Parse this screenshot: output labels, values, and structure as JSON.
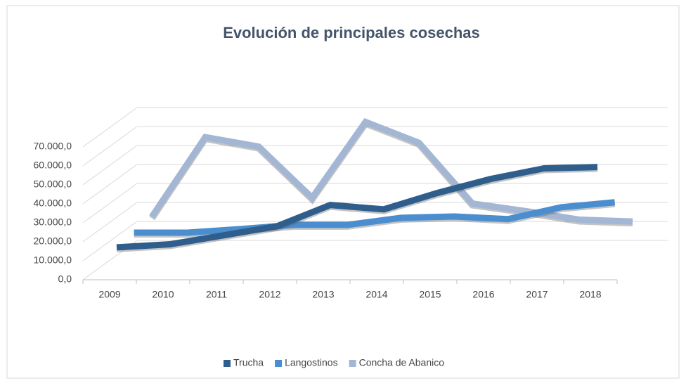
{
  "chart_data": {
    "type": "line",
    "title": "Evolución de principales cosechas",
    "categories": [
      "2009",
      "2010",
      "2011",
      "2012",
      "2013",
      "2014",
      "2015",
      "2016",
      "2017",
      "2018"
    ],
    "series": [
      {
        "name": "Trucha",
        "color": "#2f5e8c",
        "values": [
          14400,
          16000,
          20700,
          25500,
          36700,
          34400,
          43000,
          50400,
          56000,
          56700
        ]
      },
      {
        "name": "Langostinos",
        "color": "#4a8ed0",
        "values": [
          15500,
          15500,
          17400,
          19600,
          19600,
          23300,
          24000,
          22600,
          28900,
          31500
        ]
      },
      {
        "name": "Concha de Abanico",
        "color": "#a3b6d4",
        "values": [
          17000,
          59000,
          54000,
          27000,
          67000,
          56000,
          24000,
          20000,
          15500,
          14500
        ]
      }
    ],
    "ylim": [
      0,
      70000
    ],
    "yticks": [
      {
        "value": 0,
        "label": "0,0"
      },
      {
        "value": 10000,
        "label": "10.000,0"
      },
      {
        "value": 20000,
        "label": "20.000,0"
      },
      {
        "value": 30000,
        "label": "30.000,0"
      },
      {
        "value": 40000,
        "label": "40.000,0"
      },
      {
        "value": 50000,
        "label": "50.000,0"
      },
      {
        "value": 60000,
        "label": "60.000,0"
      },
      {
        "value": 70000,
        "label": "70.000,0"
      }
    ],
    "grid": true,
    "legend": "bottom"
  }
}
